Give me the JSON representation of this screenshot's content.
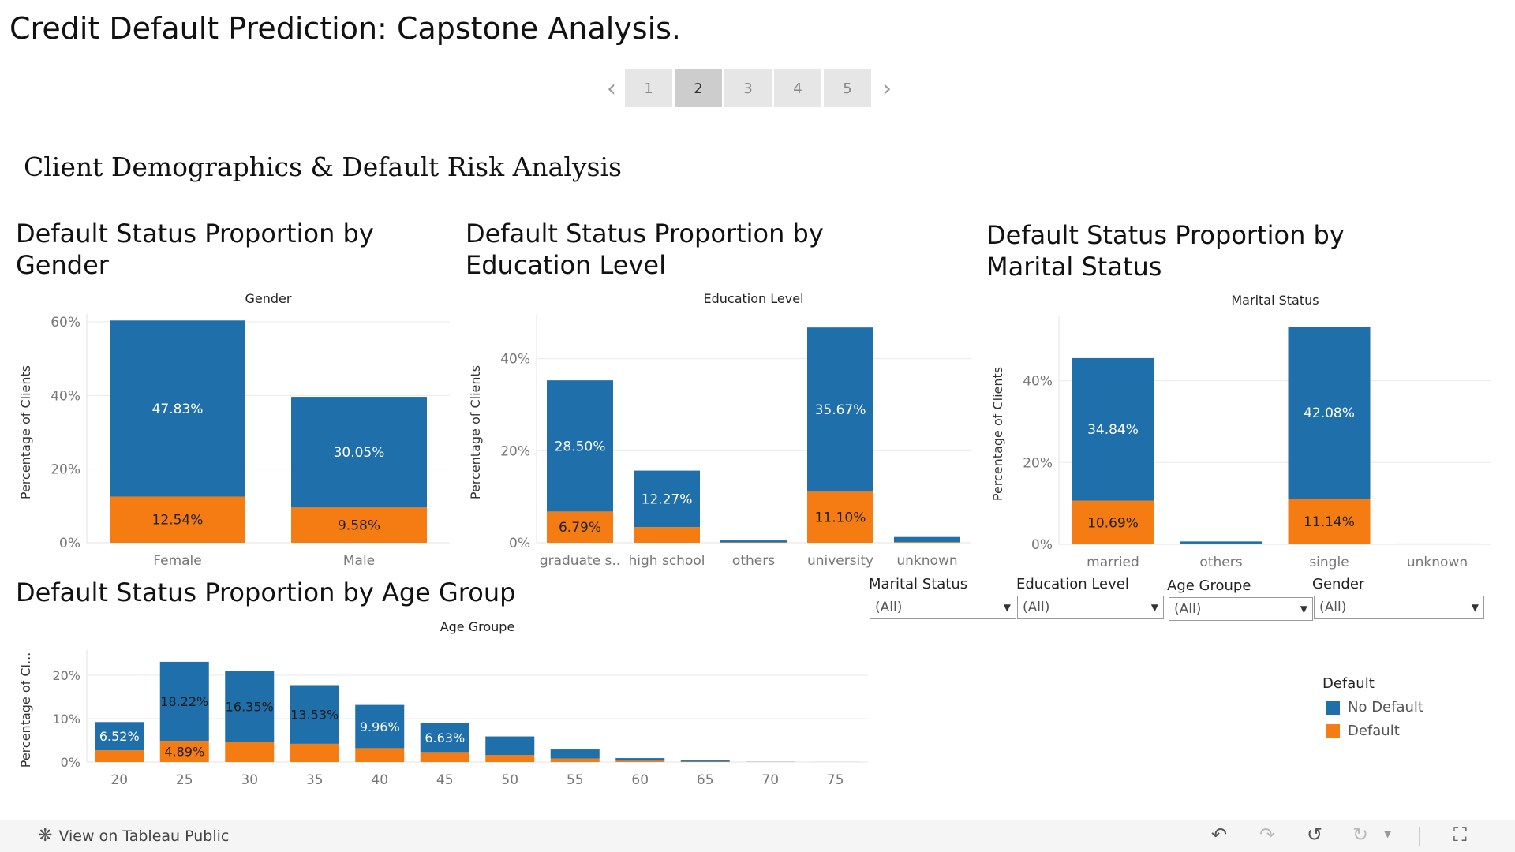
{
  "dashboard": {
    "title": "Credit Default Prediction: Capstone Analysis."
  },
  "pager": {
    "pages": [
      "1",
      "2",
      "3",
      "4",
      "5"
    ],
    "active_index": 1
  },
  "section_title": "Client Demographics & Default Risk Analysis",
  "colors": {
    "no_default": "#1f6fab",
    "default": "#f57c12",
    "grid": "#e9e9e9",
    "axis_text": "#777777"
  },
  "chart_data": [
    {
      "id": "gender",
      "type": "bar",
      "stacked": true,
      "title": "Default Status Proportion by Gender",
      "header": "Gender",
      "ylabel": "Percentage of Clients",
      "ylim": [
        0,
        60
      ],
      "yticks": [
        "0%",
        "20%",
        "40%",
        "60%"
      ],
      "categories": [
        "Female",
        "Male"
      ],
      "series": [
        {
          "name": "No Default",
          "values": [
            47.83,
            30.05
          ],
          "labels": [
            "47.83%",
            "30.05%"
          ]
        },
        {
          "name": "Default",
          "values": [
            12.54,
            9.58
          ],
          "labels": [
            "12.54%",
            "9.58%"
          ]
        }
      ]
    },
    {
      "id": "education",
      "type": "bar",
      "stacked": true,
      "title": "Default Status Proportion by Education Level",
      "header": "Education Level",
      "ylabel": "Percentage of Clients",
      "ylim": [
        0,
        48
      ],
      "yticks": [
        "0%",
        "20%",
        "40%"
      ],
      "categories": [
        "graduate s..",
        "high school",
        "others",
        "university",
        "unknown"
      ],
      "series": [
        {
          "name": "No Default",
          "values": [
            28.5,
            12.27,
            0.4,
            35.67,
            1.1
          ],
          "labels": [
            "28.50%",
            "12.27%",
            "",
            "35.67%",
            ""
          ]
        },
        {
          "name": "Default",
          "values": [
            6.79,
            3.4,
            0.1,
            11.1,
            0.15
          ],
          "labels": [
            "6.79%",
            "",
            "",
            "11.10%",
            ""
          ]
        }
      ]
    },
    {
      "id": "marital",
      "type": "bar",
      "stacked": true,
      "title": "Default Status Proportion by Marital Status",
      "header": "Marital Status",
      "ylabel": "Percentage of Clients",
      "ylim": [
        0,
        54
      ],
      "yticks": [
        "0%",
        "20%",
        "40%"
      ],
      "categories": [
        "married",
        "others",
        "single",
        "unknown"
      ],
      "series": [
        {
          "name": "No Default",
          "values": [
            34.84,
            0.5,
            42.08,
            0.15
          ],
          "labels": [
            "34.84%",
            "",
            "42.08%",
            ""
          ]
        },
        {
          "name": "Default",
          "values": [
            10.69,
            0.2,
            11.14,
            0.05
          ],
          "labels": [
            "10.69%",
            "",
            "11.14%",
            ""
          ]
        }
      ]
    },
    {
      "id": "age",
      "type": "bar",
      "stacked": true,
      "title": "Default Status Proportion by Age Group",
      "header": "Age Groupe",
      "ylabel": "Percentage of Cl...",
      "ylim": [
        0,
        24
      ],
      "yticks": [
        "0%",
        "10%",
        "20%"
      ],
      "categories": [
        "20",
        "25",
        "30",
        "35",
        "40",
        "45",
        "50",
        "55",
        "60",
        "65",
        "70",
        "75"
      ],
      "series": [
        {
          "name": "No Default",
          "values": [
            6.52,
            18.22,
            16.35,
            13.53,
            9.96,
            6.63,
            4.3,
            2.1,
            0.6,
            0.25,
            0.03,
            0.01
          ],
          "labels": [
            "6.52%",
            "18.22%",
            "16.35%",
            "13.53%",
            "9.96%",
            "6.63%",
            "",
            "",
            "",
            "",
            "",
            ""
          ]
        },
        {
          "name": "Default",
          "values": [
            2.7,
            4.89,
            4.6,
            4.2,
            3.2,
            2.3,
            1.6,
            0.8,
            0.3,
            0.1,
            0.02,
            0.0
          ],
          "labels": [
            "",
            "4.89%",
            "",
            "",
            "",
            "",
            "",
            "",
            "",
            "",
            "",
            ""
          ]
        }
      ]
    }
  ],
  "filters": [
    {
      "label": "Marital Status",
      "value": "(All)"
    },
    {
      "label": "Education Level",
      "value": "(All)"
    },
    {
      "label": "Age Groupe",
      "value": "(All)"
    },
    {
      "label": "Gender",
      "value": "(All)"
    }
  ],
  "legend": {
    "title": "Default",
    "items": [
      {
        "label": "No Default",
        "color": "#1f6fab"
      },
      {
        "label": "Default",
        "color": "#f57c12"
      }
    ]
  },
  "footer": {
    "tableau_link": "View on Tableau Public",
    "icons": [
      "undo-icon",
      "redo-icon",
      "revert-icon",
      "refresh-icon",
      "dropdown-caret-icon",
      "fullscreen-icon"
    ]
  }
}
